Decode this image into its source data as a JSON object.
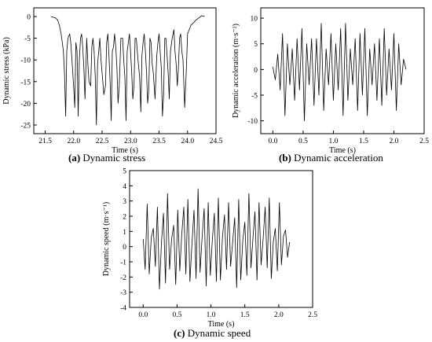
{
  "chart_data": [
    {
      "id": "a",
      "type": "line",
      "caption": {
        "letter": "(a)",
        "text": " Dynamic stress"
      },
      "xlabel": "Time (s)",
      "ylabel": "Dynamic stress (kPa)",
      "xlim": [
        21.3,
        24.5
      ],
      "ylim": [
        -27,
        2
      ],
      "xticks": [
        21.5,
        22.0,
        22.5,
        23.0,
        23.5,
        24.0,
        24.5
      ],
      "xtick_labels": [
        "21.5",
        "22.0",
        "22.5",
        "23.0",
        "23.5",
        "24.0",
        "24.5"
      ],
      "yticks": [
        0,
        -5,
        -10,
        -15,
        -20,
        -25
      ],
      "ytick_labels": [
        "0",
        "-5",
        "-10",
        "-15",
        "-20",
        "-25"
      ],
      "series": [
        {
          "x": [
            21.6,
            21.68,
            21.72,
            21.75,
            21.78,
            21.8,
            21.82,
            21.84,
            21.86,
            21.88,
            21.9,
            21.93,
            21.95,
            21.97,
            22.0,
            22.02,
            22.04,
            22.06,
            22.08,
            22.1,
            22.12,
            22.14,
            22.16,
            22.18,
            22.2,
            22.23,
            22.25,
            22.27,
            22.3,
            22.32,
            22.34,
            22.36,
            22.38,
            22.4,
            22.42,
            22.44,
            22.46,
            22.48,
            22.5,
            22.53,
            22.56,
            22.58,
            22.6,
            22.62,
            22.64,
            22.66,
            22.68,
            22.7,
            22.72,
            22.74,
            22.76,
            22.78,
            22.8,
            22.83,
            22.86,
            22.88,
            22.9,
            22.92,
            22.94,
            22.96,
            22.98,
            23.0,
            23.02,
            23.04,
            23.06,
            23.08,
            23.1,
            23.13,
            23.16,
            23.18,
            23.2,
            23.22,
            23.24,
            23.26,
            23.28,
            23.3,
            23.32,
            23.34,
            23.36,
            23.38,
            23.4,
            23.43,
            23.46,
            23.48,
            23.5,
            23.52,
            23.54,
            23.56,
            23.58,
            23.6,
            23.62,
            23.64,
            23.66,
            23.68,
            23.7,
            23.73,
            23.76,
            23.78,
            23.8,
            23.82,
            23.84,
            23.86,
            23.88,
            23.9,
            23.92,
            23.95,
            23.98,
            24.0,
            24.03,
            24.06,
            24.1,
            24.15,
            24.2,
            24.25,
            24.3
          ],
          "y": [
            0,
            -0.3,
            -0.8,
            -2,
            -4,
            -6,
            -8,
            -13,
            -23,
            -8,
            -5,
            -4,
            -6,
            -10,
            -16,
            -21,
            -6,
            -8,
            -23,
            -10,
            -5,
            -4,
            -7,
            -12,
            -19,
            -5,
            -11,
            -15,
            -16,
            -7,
            -5,
            -8,
            -14,
            -25,
            -11,
            -8,
            -5,
            -10,
            -13,
            -18,
            -16,
            -6,
            -4,
            -9,
            -15,
            -24,
            -8,
            -7,
            -4,
            -7,
            -12,
            -20,
            -16,
            -5,
            -5,
            -10,
            -14,
            -24,
            -8,
            -6,
            -4,
            -8,
            -13,
            -19,
            -16,
            -5,
            -5,
            -10,
            -14,
            -22,
            -9,
            -6,
            -4,
            -8,
            -13,
            -20,
            -17,
            -5,
            -6,
            -11,
            -13,
            -19,
            -9,
            -6,
            -4,
            -8,
            -12,
            -23,
            -18,
            -5,
            -5,
            -9,
            -13,
            -19,
            -8,
            -5,
            -3,
            -8,
            -11,
            -16,
            -12,
            -5,
            -4,
            -8,
            -10,
            -21,
            -12,
            -4,
            -3,
            -2,
            -1.5,
            -0.8,
            -0.3,
            0.2,
            0
          ]
        }
      ]
    },
    {
      "id": "b",
      "type": "line",
      "caption": {
        "letter": "(b)",
        "text": " Dynamic acceleration"
      },
      "xlabel": "Time (s)",
      "ylabel": "Dynamic acceleration (m·s⁻²)",
      "xlim": [
        -0.2,
        2.5
      ],
      "ylim": [
        -12.5,
        12
      ],
      "xticks": [
        0.0,
        0.5,
        1.0,
        1.5,
        2.0,
        2.5
      ],
      "xtick_labels": [
        "0.0",
        "0.5",
        "1.0",
        "1.5",
        "2.0",
        "2.5"
      ],
      "yticks": [
        10,
        5,
        0,
        -5,
        -10
      ],
      "ytick_labels": [
        "10",
        "5",
        "0",
        "-5",
        "-10"
      ],
      "series": [
        {
          "x": [
            0.0,
            0.04,
            0.08,
            0.12,
            0.16,
            0.2,
            0.24,
            0.28,
            0.32,
            0.36,
            0.4,
            0.44,
            0.48,
            0.52,
            0.56,
            0.6,
            0.64,
            0.68,
            0.72,
            0.76,
            0.8,
            0.84,
            0.88,
            0.92,
            0.96,
            1.0,
            1.04,
            1.08,
            1.12,
            1.16,
            1.2,
            1.24,
            1.28,
            1.32,
            1.36,
            1.4,
            1.44,
            1.48,
            1.52,
            1.56,
            1.6,
            1.64,
            1.68,
            1.72,
            1.76,
            1.8,
            1.84,
            1.88,
            1.92,
            1.96,
            2.0,
            2.04,
            2.08,
            2.12,
            2.16,
            2.2
          ],
          "y": [
            0.5,
            -2,
            3,
            -4,
            7,
            -9,
            5,
            -3,
            4,
            -6,
            6,
            -4,
            8,
            -10,
            5,
            -3,
            6,
            -7,
            6,
            -5,
            9,
            -8,
            4,
            -3,
            7,
            -6,
            5,
            -4,
            8,
            -9,
            9,
            -6,
            4,
            -3,
            6,
            -8,
            7,
            -5,
            8,
            -9,
            4,
            -3,
            5,
            -6,
            6,
            -7,
            8,
            -5,
            4,
            -4,
            7,
            -8,
            5,
            -3,
            2,
            0
          ]
        }
      ]
    },
    {
      "id": "c",
      "type": "line",
      "caption": {
        "letter": "(c)",
        "text": " Dynamic speed"
      },
      "xlabel": "Time (s)",
      "ylabel": "Dynamic speed (m·s⁻¹)",
      "xlim": [
        -0.2,
        2.5
      ],
      "ylim": [
        -4,
        5
      ],
      "xticks": [
        0.0,
        0.5,
        1.0,
        1.5,
        2.0,
        2.5
      ],
      "xtick_labels": [
        "0.0",
        "0.5",
        "1.0",
        "1.5",
        "2.0",
        "2.5"
      ],
      "yticks": [
        5,
        4,
        3,
        2,
        1,
        0,
        -1,
        -2,
        -3,
        -4
      ],
      "ytick_labels": [
        "5",
        "4",
        "3",
        "2",
        "1",
        "0",
        "-1",
        "-2",
        "-3",
        "-4"
      ],
      "series": [
        {
          "x": [
            0.0,
            0.03,
            0.06,
            0.09,
            0.12,
            0.15,
            0.18,
            0.21,
            0.24,
            0.27,
            0.3,
            0.33,
            0.36,
            0.39,
            0.42,
            0.45,
            0.48,
            0.51,
            0.54,
            0.57,
            0.6,
            0.63,
            0.66,
            0.69,
            0.72,
            0.75,
            0.78,
            0.81,
            0.84,
            0.87,
            0.9,
            0.93,
            0.96,
            0.99,
            1.02,
            1.05,
            1.08,
            1.11,
            1.14,
            1.17,
            1.2,
            1.23,
            1.26,
            1.29,
            1.32,
            1.35,
            1.38,
            1.41,
            1.44,
            1.47,
            1.5,
            1.53,
            1.56,
            1.59,
            1.62,
            1.65,
            1.68,
            1.71,
            1.74,
            1.77,
            1.8,
            1.83,
            1.86,
            1.89,
            1.92,
            1.95,
            1.98,
            2.01,
            2.04,
            2.07,
            2.1,
            2.13,
            2.16
          ],
          "y": [
            0.5,
            -1.5,
            2.8,
            -1.8,
            0.6,
            1.2,
            -1.3,
            2.6,
            -2.8,
            0.3,
            2.2,
            -2.4,
            3.5,
            -1.5,
            0.5,
            1.4,
            -2.5,
            2.4,
            -1.6,
            0.8,
            2.6,
            -1.8,
            3.1,
            -2.3,
            0.2,
            2.4,
            -2.1,
            3.8,
            -1.7,
            0.6,
            2.5,
            -2.6,
            2.9,
            -1.9,
            0.4,
            2.2,
            -2.3,
            3.2,
            -2.2,
            0.6,
            2.1,
            -1.5,
            2.9,
            -1.3,
            0.3,
            1.9,
            -2.7,
            3.1,
            -2.2,
            0.4,
            1.6,
            -1.9,
            3.5,
            -1.4,
            0.6,
            2.3,
            -2.2,
            2.9,
            -1.2,
            0.5,
            2.6,
            -1.4,
            3.2,
            -2.1,
            0.3,
            1.2,
            -1.6,
            2.9,
            -1.2,
            0.7,
            1.1,
            -0.7,
            0.3
          ]
        }
      ]
    }
  ]
}
